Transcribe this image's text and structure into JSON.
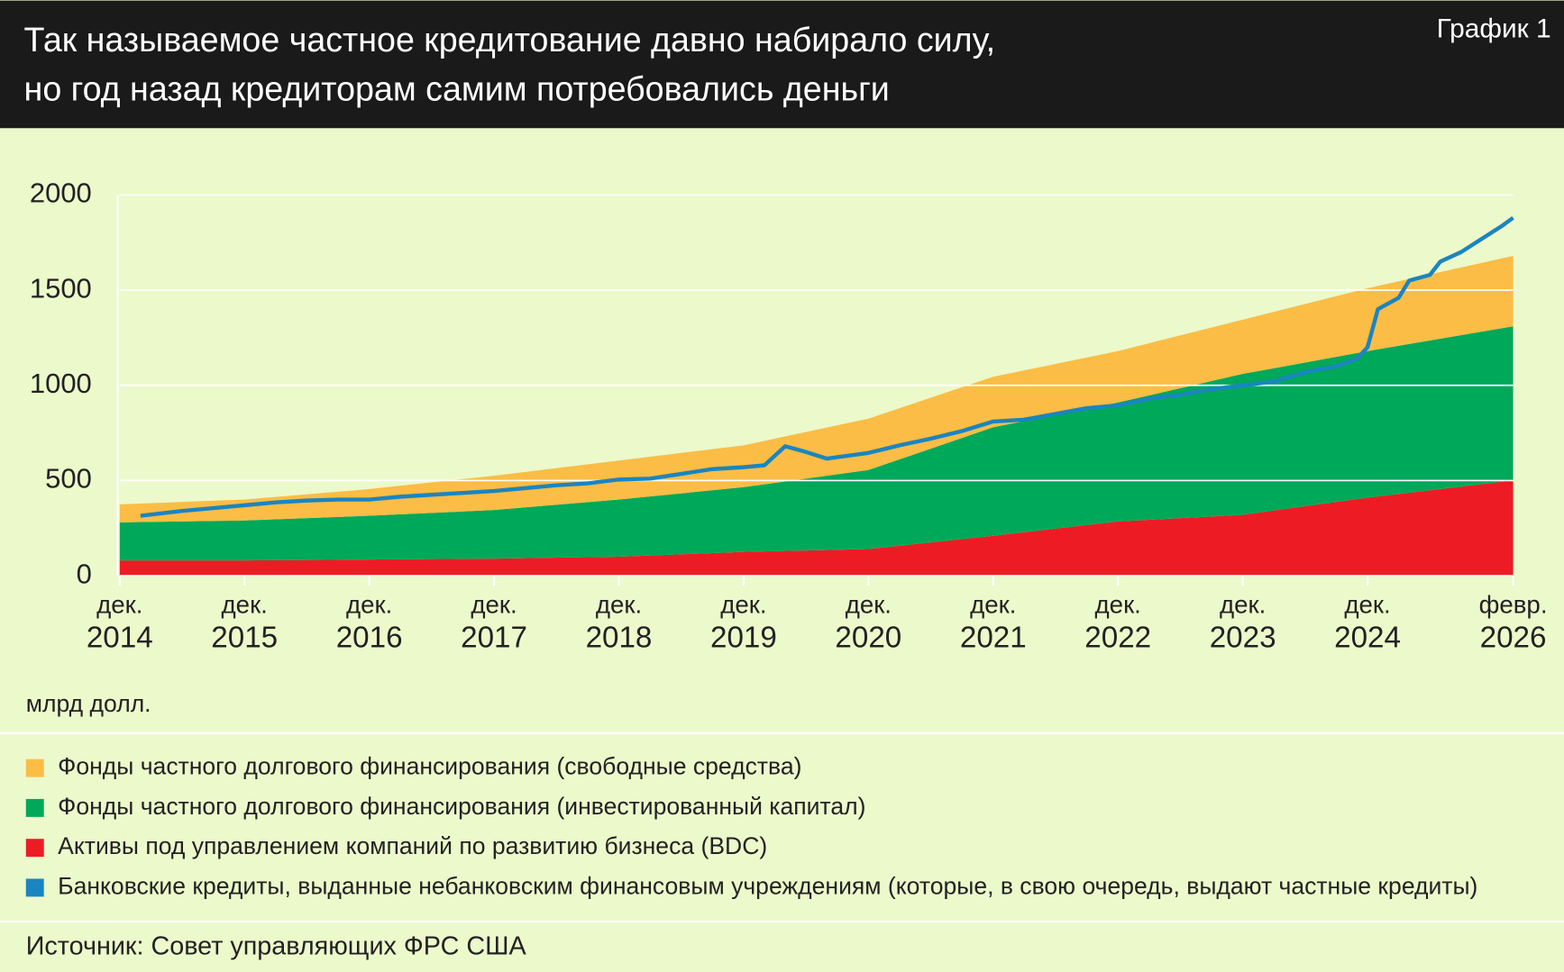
{
  "header": {
    "title": [
      "Так называемое частное кредитование давно набирало силу,",
      "но год назад  кредиторам самим потребовались деньги"
    ],
    "label": "График 1"
  },
  "chart_data": {
    "type": "area",
    "x": [
      "2014-12",
      "2015-12",
      "2016-12",
      "2017-12",
      "2018-12",
      "2019-12",
      "2020-12",
      "2021-12",
      "2022-12",
      "2023-12",
      "2024-12",
      "2026-02"
    ],
    "series": [
      {
        "name": "Фонды частного долгового финансирования (свободные средства)",
        "color": "#fbbd45",
        "type": "area",
        "values": [
          95,
          110,
          140,
          180,
          205,
          220,
          270,
          265,
          270,
          285,
          330,
          370
        ]
      },
      {
        "name": "Фонды частного долгового финансирования (инвестированный капитал)",
        "color": "#00a85a",
        "type": "area",
        "values": [
          200,
          210,
          230,
          255,
          300,
          340,
          415,
          570,
          625,
          740,
          770,
          810
        ]
      },
      {
        "name": "Активы под управлением компаний по развитию бизнеса (BDC)",
        "color": "#ed1c24",
        "type": "area",
        "values": [
          80,
          80,
          85,
          90,
          100,
          125,
          140,
          210,
          285,
          320,
          410,
          500
        ]
      },
      {
        "name": "Банковские кредиты, выданные небанковским финансовым учреждениям (которые, в свою очередь, выдают частные кредиты)",
        "color": "#1a85c0",
        "type": "line",
        "x": [
          "2015-02",
          "2015-06",
          "2015-09",
          "2015-12",
          "2016-03",
          "2016-06",
          "2016-09",
          "2016-12",
          "2017-03",
          "2017-06",
          "2017-09",
          "2017-12",
          "2018-03",
          "2018-06",
          "2018-09",
          "2018-12",
          "2019-03",
          "2019-06",
          "2019-09",
          "2019-12",
          "2020-02",
          "2020-04",
          "2020-06",
          "2020-08",
          "2020-10",
          "2020-12",
          "2021-03",
          "2021-06",
          "2021-09",
          "2021-12",
          "2022-03",
          "2022-06",
          "2022-09",
          "2022-12",
          "2023-03",
          "2023-06",
          "2023-09",
          "2023-12",
          "2024-03",
          "2024-06",
          "2024-09",
          "2024-11",
          "2024-12",
          "2025-01",
          "2025-03",
          "2025-04",
          "2025-06",
          "2025-07",
          "2025-09",
          "2025-11",
          "2026-01",
          "2026-02"
        ],
        "values": [
          315,
          340,
          355,
          370,
          385,
          395,
          400,
          400,
          415,
          425,
          435,
          445,
          460,
          475,
          485,
          505,
          510,
          535,
          560,
          570,
          580,
          680,
          650,
          615,
          630,
          645,
          685,
          720,
          760,
          810,
          820,
          850,
          880,
          895,
          930,
          950,
          980,
          1000,
          1020,
          1070,
          1100,
          1140,
          1200,
          1400,
          1460,
          1550,
          1580,
          1650,
          1700,
          1770,
          1840,
          1880
        ]
      }
    ],
    "xlim": [
      "2014-12",
      "2026-02"
    ],
    "xticks": [
      {
        "value": "2014-12",
        "label": [
          "дек.",
          "2014"
        ]
      },
      {
        "value": "2015-12",
        "label": [
          "дек.",
          "2015"
        ]
      },
      {
        "value": "2016-12",
        "label": [
          "дек.",
          "2016"
        ]
      },
      {
        "value": "2017-12",
        "label": [
          "дек.",
          "2017"
        ]
      },
      {
        "value": "2018-12",
        "label": [
          "дек.",
          "2018"
        ]
      },
      {
        "value": "2019-12",
        "label": [
          "дек.",
          "2019"
        ]
      },
      {
        "value": "2020-12",
        "label": [
          "дек.",
          "2020"
        ]
      },
      {
        "value": "2021-12",
        "label": [
          "дек.",
          "2021"
        ]
      },
      {
        "value": "2022-12",
        "label": [
          "дек.",
          "2022"
        ]
      },
      {
        "value": "2023-12",
        "label": [
          "дек.",
          "2023"
        ]
      },
      {
        "value": "2024-12",
        "label": [
          "дек.",
          "2024"
        ]
      },
      {
        "value": "2026-02",
        "label": [
          "февр.",
          "2026"
        ]
      }
    ],
    "ylim": [
      0,
      2000
    ],
    "yticks": [
      0,
      500,
      1000,
      1500,
      2000
    ],
    "grid": true,
    "y_unit": "млрд долл."
  },
  "source": "Источник: Совет управляющих ФРС США"
}
